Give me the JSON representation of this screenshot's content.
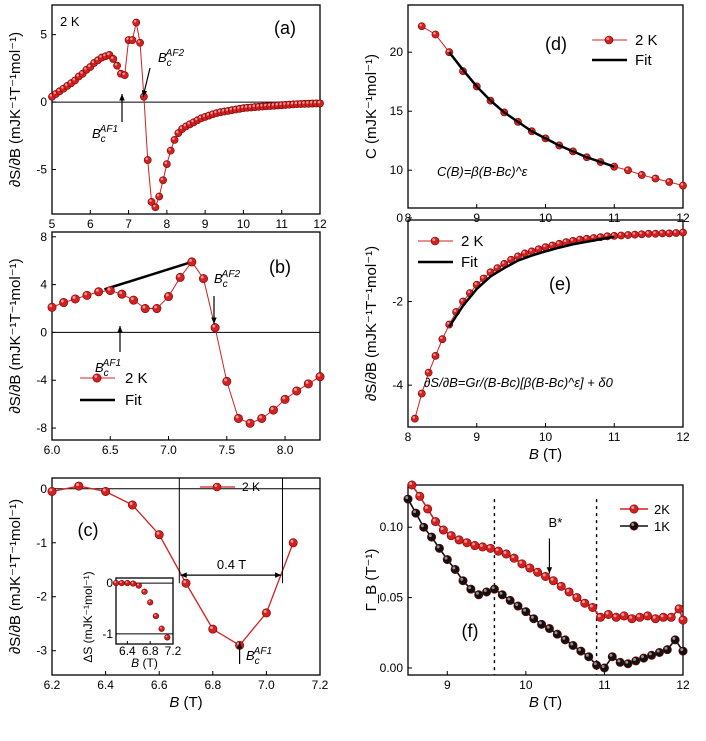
{
  "chart_data": [
    {
      "id": "a",
      "type": "scatter",
      "panel_label": "(a)",
      "temperature_label": "2 K",
      "xlim": [
        5,
        12
      ],
      "ylim": [
        -8.3,
        7.2
      ],
      "xticks": [
        "5",
        "6",
        "7",
        "8",
        "9",
        "10",
        "11",
        "12"
      ],
      "yticks": [
        "-5",
        "0",
        "5"
      ],
      "xlabel": "",
      "ylabel": "∂S/∂B (mJK⁻¹T⁻¹mol⁻¹)",
      "annotations": [
        {
          "text": "B_c^AF2",
          "arrow_to": [
            7.4,
            0.4
          ]
        },
        {
          "text": "B_c^AF1",
          "arrow_to": [
            6.9,
            1.8
          ]
        }
      ],
      "series": [
        {
          "name": "2 K",
          "color": "#d42020",
          "x": [
            5.0,
            5.1,
            5.2,
            5.3,
            5.4,
            5.5,
            5.6,
            5.7,
            5.8,
            5.9,
            6.0,
            6.1,
            6.2,
            6.3,
            6.4,
            6.5,
            6.6,
            6.7,
            6.8,
            6.9,
            7.0,
            7.1,
            7.2,
            7.3,
            7.4,
            7.5,
            7.6,
            7.7,
            7.8,
            7.9,
            8.0,
            8.1,
            8.2,
            8.3,
            8.4,
            8.5,
            8.6,
            8.7,
            8.8,
            8.9,
            9.0,
            9.1,
            9.2,
            9.3,
            9.4,
            9.5,
            9.6,
            9.7,
            9.8,
            9.9,
            10.0,
            10.1,
            10.2,
            10.3,
            10.4,
            10.5,
            10.6,
            10.7,
            10.8,
            10.9,
            11.0,
            11.1,
            11.2,
            11.3,
            11.4,
            11.5,
            11.6,
            11.7,
            11.8,
            11.9,
            12.0
          ],
          "y": [
            0.4,
            0.6,
            0.8,
            1.0,
            1.2,
            1.4,
            1.6,
            1.9,
            2.1,
            2.4,
            2.6,
            2.9,
            3.1,
            3.3,
            3.4,
            3.5,
            3.2,
            2.7,
            2.1,
            2.0,
            4.6,
            4.6,
            5.9,
            4.4,
            0.4,
            -4.3,
            -7.4,
            -7.8,
            -7.0,
            -5.8,
            -4.6,
            -3.6,
            -2.8,
            -2.3,
            -2.0,
            -1.8,
            -1.65,
            -1.5,
            -1.35,
            -1.2,
            -1.1,
            -1.0,
            -0.9,
            -0.82,
            -0.75,
            -0.7,
            -0.65,
            -0.6,
            -0.55,
            -0.5,
            -0.45,
            -0.42,
            -0.4,
            -0.37,
            -0.35,
            -0.33,
            -0.31,
            -0.29,
            -0.27,
            -0.25,
            -0.23,
            -0.21,
            -0.19,
            -0.17,
            -0.15,
            -0.14,
            -0.13,
            -0.12,
            -0.11,
            -0.1,
            -0.1
          ]
        }
      ]
    },
    {
      "id": "b",
      "type": "scatter",
      "panel_label": "(b)",
      "xlim": [
        6.0,
        8.3
      ],
      "ylim": [
        -9,
        8.4
      ],
      "xticks": [
        "6.0",
        "6.5",
        "7.0",
        "7.5",
        "8.0"
      ],
      "yticks": [
        "-8",
        "-4",
        "0",
        "4",
        "8"
      ],
      "xlabel": "",
      "ylabel": "∂S/∂B (mJK⁻¹T⁻¹mol⁻¹)",
      "annotations": [
        {
          "text": "B_c^AF2",
          "arrow_to": [
            7.4,
            0.4
          ]
        },
        {
          "text": "B_c^AF1",
          "arrow_to": [
            6.9,
            1.8
          ]
        }
      ],
      "legend": [
        "2 K",
        "Fit"
      ],
      "series": [
        {
          "name": "2 K",
          "color": "#d42020",
          "x": [
            6.0,
            6.1,
            6.2,
            6.3,
            6.4,
            6.5,
            6.6,
            6.7,
            6.8,
            6.9,
            7.0,
            7.1,
            7.2,
            7.3,
            7.4,
            7.5,
            7.6,
            7.7,
            7.8,
            7.9,
            8.0,
            8.1,
            8.2,
            8.3
          ],
          "y": [
            2.1,
            2.5,
            2.8,
            3.1,
            3.4,
            3.5,
            3.2,
            2.7,
            2.0,
            2.0,
            3.0,
            4.6,
            5.9,
            4.5,
            0.4,
            -4.1,
            -7.2,
            -7.6,
            -7.2,
            -6.5,
            -5.6,
            -4.9,
            -4.3,
            -3.7
          ]
        },
        {
          "name": "Fit",
          "color": "#000000",
          "x": [
            6.45,
            7.2
          ],
          "y": [
            3.6,
            5.9
          ]
        }
      ]
    },
    {
      "id": "c",
      "type": "line",
      "panel_label": "(c)",
      "xlim": [
        6.2,
        7.2
      ],
      "ylim": [
        -3.45,
        0.2
      ],
      "xticks": [
        "6.2",
        "6.4",
        "6.6",
        "6.8",
        "7.0",
        "7.2"
      ],
      "yticks": [
        "-3",
        "-2",
        "-1",
        "0"
      ],
      "xlabel": "B (T)",
      "ylabel": "∂S/∂B (mJK⁻¹T⁻¹mol⁻¹)",
      "legend": [
        "2 K"
      ],
      "width_annotation": "0.4 T",
      "annotations": [
        {
          "text": "B_c^AF1",
          "arrow_to": [
            6.9,
            -3.0
          ]
        }
      ],
      "series": [
        {
          "name": "2 K",
          "color": "#d42020",
          "x": [
            6.2,
            6.3,
            6.4,
            6.5,
            6.6,
            6.7,
            6.8,
            6.9,
            7.0,
            7.1
          ],
          "y": [
            -0.05,
            0.05,
            -0.05,
            -0.3,
            -0.85,
            -1.75,
            -2.6,
            -2.9,
            -2.3,
            -1.0
          ]
        }
      ],
      "inset": {
        "xlim": [
          6.2,
          7.2
        ],
        "ylim": [
          -1.2,
          0.1
        ],
        "xticks": [
          "6.4",
          "6.8",
          "7.2"
        ],
        "yticks": [
          "-1",
          "0"
        ],
        "xlabel": "B (T)",
        "ylabel": "ΔS (mJK⁻¹mol⁻¹)",
        "x": [
          6.2,
          6.3,
          6.4,
          6.5,
          6.6,
          6.7,
          6.8,
          6.9,
          7.0,
          7.1
        ],
        "y": [
          0.0,
          0.0,
          0.0,
          -0.01,
          -0.05,
          -0.17,
          -0.38,
          -0.65,
          -0.9,
          -1.07
        ]
      }
    },
    {
      "id": "d",
      "type": "scatter",
      "panel_label": "(d)",
      "xlim": [
        8,
        12
      ],
      "ylim": [
        6.8,
        24
      ],
      "xticks": [
        "8",
        "9",
        "10",
        "11",
        "12"
      ],
      "yticks": [
        "10",
        "15",
        "20"
      ],
      "xlabel": "",
      "ylabel": "C (mJK⁻¹mol⁻¹)",
      "legend": [
        "2 K",
        "Fit"
      ],
      "equation": "C(B)=β(B-Bc)^ε",
      "series": [
        {
          "name": "2 K",
          "color": "#d42020",
          "x": [
            8.2,
            8.4,
            8.6,
            8.8,
            9.0,
            9.2,
            9.4,
            9.6,
            9.8,
            10.0,
            10.2,
            10.4,
            10.6,
            10.8,
            11.0,
            11.2,
            11.4,
            11.6,
            11.8,
            12.0
          ],
          "y": [
            22.2,
            21.5,
            20.0,
            18.4,
            17.1,
            15.9,
            14.9,
            14.1,
            13.3,
            12.7,
            12.1,
            11.6,
            11.1,
            10.7,
            10.3,
            10.0,
            9.6,
            9.3,
            9.0,
            8.7
          ]
        },
        {
          "name": "Fit",
          "color": "#000000",
          "x": [
            8.6,
            8.8,
            9.0,
            9.2,
            9.4,
            9.6,
            9.8,
            10.0,
            10.2,
            10.4,
            10.6,
            10.8,
            11.0
          ],
          "y": [
            20.0,
            18.5,
            17.1,
            15.9,
            14.9,
            14.1,
            13.3,
            12.7,
            12.1,
            11.6,
            11.1,
            10.7,
            10.3
          ]
        }
      ]
    },
    {
      "id": "e",
      "type": "scatter",
      "panel_label": "(e)",
      "xlim": [
        8,
        12
      ],
      "ylim": [
        -5,
        -0.05
      ],
      "xticks": [
        "8",
        "9",
        "10",
        "11",
        "12"
      ],
      "yticks": [
        "-4",
        "-2",
        "0"
      ],
      "xlabel": "B (T)",
      "ylabel": "∂S/∂B (mJK⁻¹T⁻¹mol⁻¹)",
      "legend": [
        "2 K",
        "Fit"
      ],
      "equation": "∂S/∂B=Gr/(B-Bc)[β(B-Bc)^ε] + δ0",
      "series": [
        {
          "name": "2 K",
          "color": "#d42020",
          "x": [
            8.1,
            8.2,
            8.3,
            8.4,
            8.5,
            8.6,
            8.7,
            8.8,
            8.9,
            9.0,
            9.1,
            9.2,
            9.3,
            9.4,
            9.5,
            9.6,
            9.7,
            9.8,
            9.9,
            10.0,
            10.1,
            10.2,
            10.3,
            10.4,
            10.5,
            10.6,
            10.7,
            10.8,
            10.9,
            11.0,
            11.1,
            11.2,
            11.3,
            11.4,
            11.5,
            11.6,
            11.7,
            11.8,
            11.9,
            12.0
          ],
          "y": [
            -4.8,
            -4.2,
            -3.7,
            -3.3,
            -2.9,
            -2.55,
            -2.25,
            -2.0,
            -1.8,
            -1.6,
            -1.45,
            -1.3,
            -1.2,
            -1.1,
            -1.0,
            -0.92,
            -0.85,
            -0.8,
            -0.75,
            -0.7,
            -0.66,
            -0.62,
            -0.58,
            -0.55,
            -0.52,
            -0.5,
            -0.48,
            -0.46,
            -0.44,
            -0.43,
            -0.42,
            -0.41,
            -0.4,
            -0.39,
            -0.38,
            -0.38,
            -0.37,
            -0.37,
            -0.36,
            -0.35
          ]
        },
        {
          "name": "Fit",
          "color": "#000000",
          "x": [
            8.6,
            8.8,
            9.0,
            9.2,
            9.4,
            9.6,
            9.8,
            10.0,
            10.2,
            10.4,
            10.6,
            10.8,
            11.0
          ],
          "y": [
            -2.6,
            -2.1,
            -1.7,
            -1.4,
            -1.2,
            -1.02,
            -0.9,
            -0.8,
            -0.71,
            -0.63,
            -0.57,
            -0.51,
            -0.45
          ]
        }
      ]
    },
    {
      "id": "f",
      "type": "line",
      "panel_label": "(f)",
      "xlim": [
        8.5,
        12
      ],
      "ylim": [
        -0.005,
        0.13
      ],
      "xticks": [
        "9",
        "10",
        "11",
        "12"
      ],
      "yticks": [
        "0.00",
        "0.05",
        "0.10"
      ],
      "xlabel": "B (T)",
      "ylabel": "Γ_B (T⁻¹)",
      "legend": [
        "2K",
        "1K"
      ],
      "marker_label": "B*",
      "dashed_x": [
        9.6,
        10.9
      ],
      "series": [
        {
          "name": "2K",
          "color": "#d42020",
          "x": [
            8.55,
            8.65,
            8.75,
            8.85,
            8.95,
            9.05,
            9.15,
            9.25,
            9.35,
            9.45,
            9.55,
            9.65,
            9.75,
            9.85,
            9.95,
            10.05,
            10.15,
            10.25,
            10.35,
            10.45,
            10.55,
            10.65,
            10.75,
            10.85,
            10.95,
            11.05,
            11.15,
            11.25,
            11.35,
            11.45,
            11.55,
            11.65,
            11.75,
            11.85,
            11.95,
            12.0
          ],
          "y": [
            0.13,
            0.122,
            0.113,
            0.104,
            0.098,
            0.094,
            0.091,
            0.089,
            0.087,
            0.086,
            0.085,
            0.083,
            0.081,
            0.078,
            0.074,
            0.071,
            0.068,
            0.065,
            0.062,
            0.058,
            0.054,
            0.05,
            0.046,
            0.043,
            0.036,
            0.038,
            0.036,
            0.037,
            0.035,
            0.036,
            0.037,
            0.035,
            0.036,
            0.036,
            0.042,
            0.034
          ]
        },
        {
          "name": "1K",
          "color": "#111111",
          "x": [
            8.5,
            8.6,
            8.7,
            8.8,
            8.9,
            9.0,
            9.1,
            9.2,
            9.3,
            9.4,
            9.5,
            9.6,
            9.7,
            9.8,
            9.9,
            10.0,
            10.1,
            10.2,
            10.3,
            10.4,
            10.5,
            10.6,
            10.7,
            10.8,
            10.9,
            11.0,
            11.1,
            11.2,
            11.3,
            11.4,
            11.5,
            11.6,
            11.7,
            11.8,
            11.9,
            12.0
          ],
          "y": [
            0.12,
            0.11,
            0.1,
            0.093,
            0.085,
            0.077,
            0.07,
            0.062,
            0.056,
            0.052,
            0.054,
            0.056,
            0.052,
            0.048,
            0.044,
            0.04,
            0.035,
            0.031,
            0.028,
            0.024,
            0.02,
            0.016,
            0.012,
            0.008,
            0.002,
            0.0,
            0.008,
            0.004,
            0.003,
            0.005,
            0.007,
            0.009,
            0.011,
            0.013,
            0.02,
            0.012
          ]
        }
      ]
    }
  ],
  "text": {
    "two_k": "2 K",
    "af2": "AF2",
    "af1": "AF1",
    "bc": "B",
    "bsub": "c",
    "width": "0.4 T",
    "bstar": "B*",
    "fit": "Fit",
    "k2": "2K",
    "k1": "1K"
  }
}
